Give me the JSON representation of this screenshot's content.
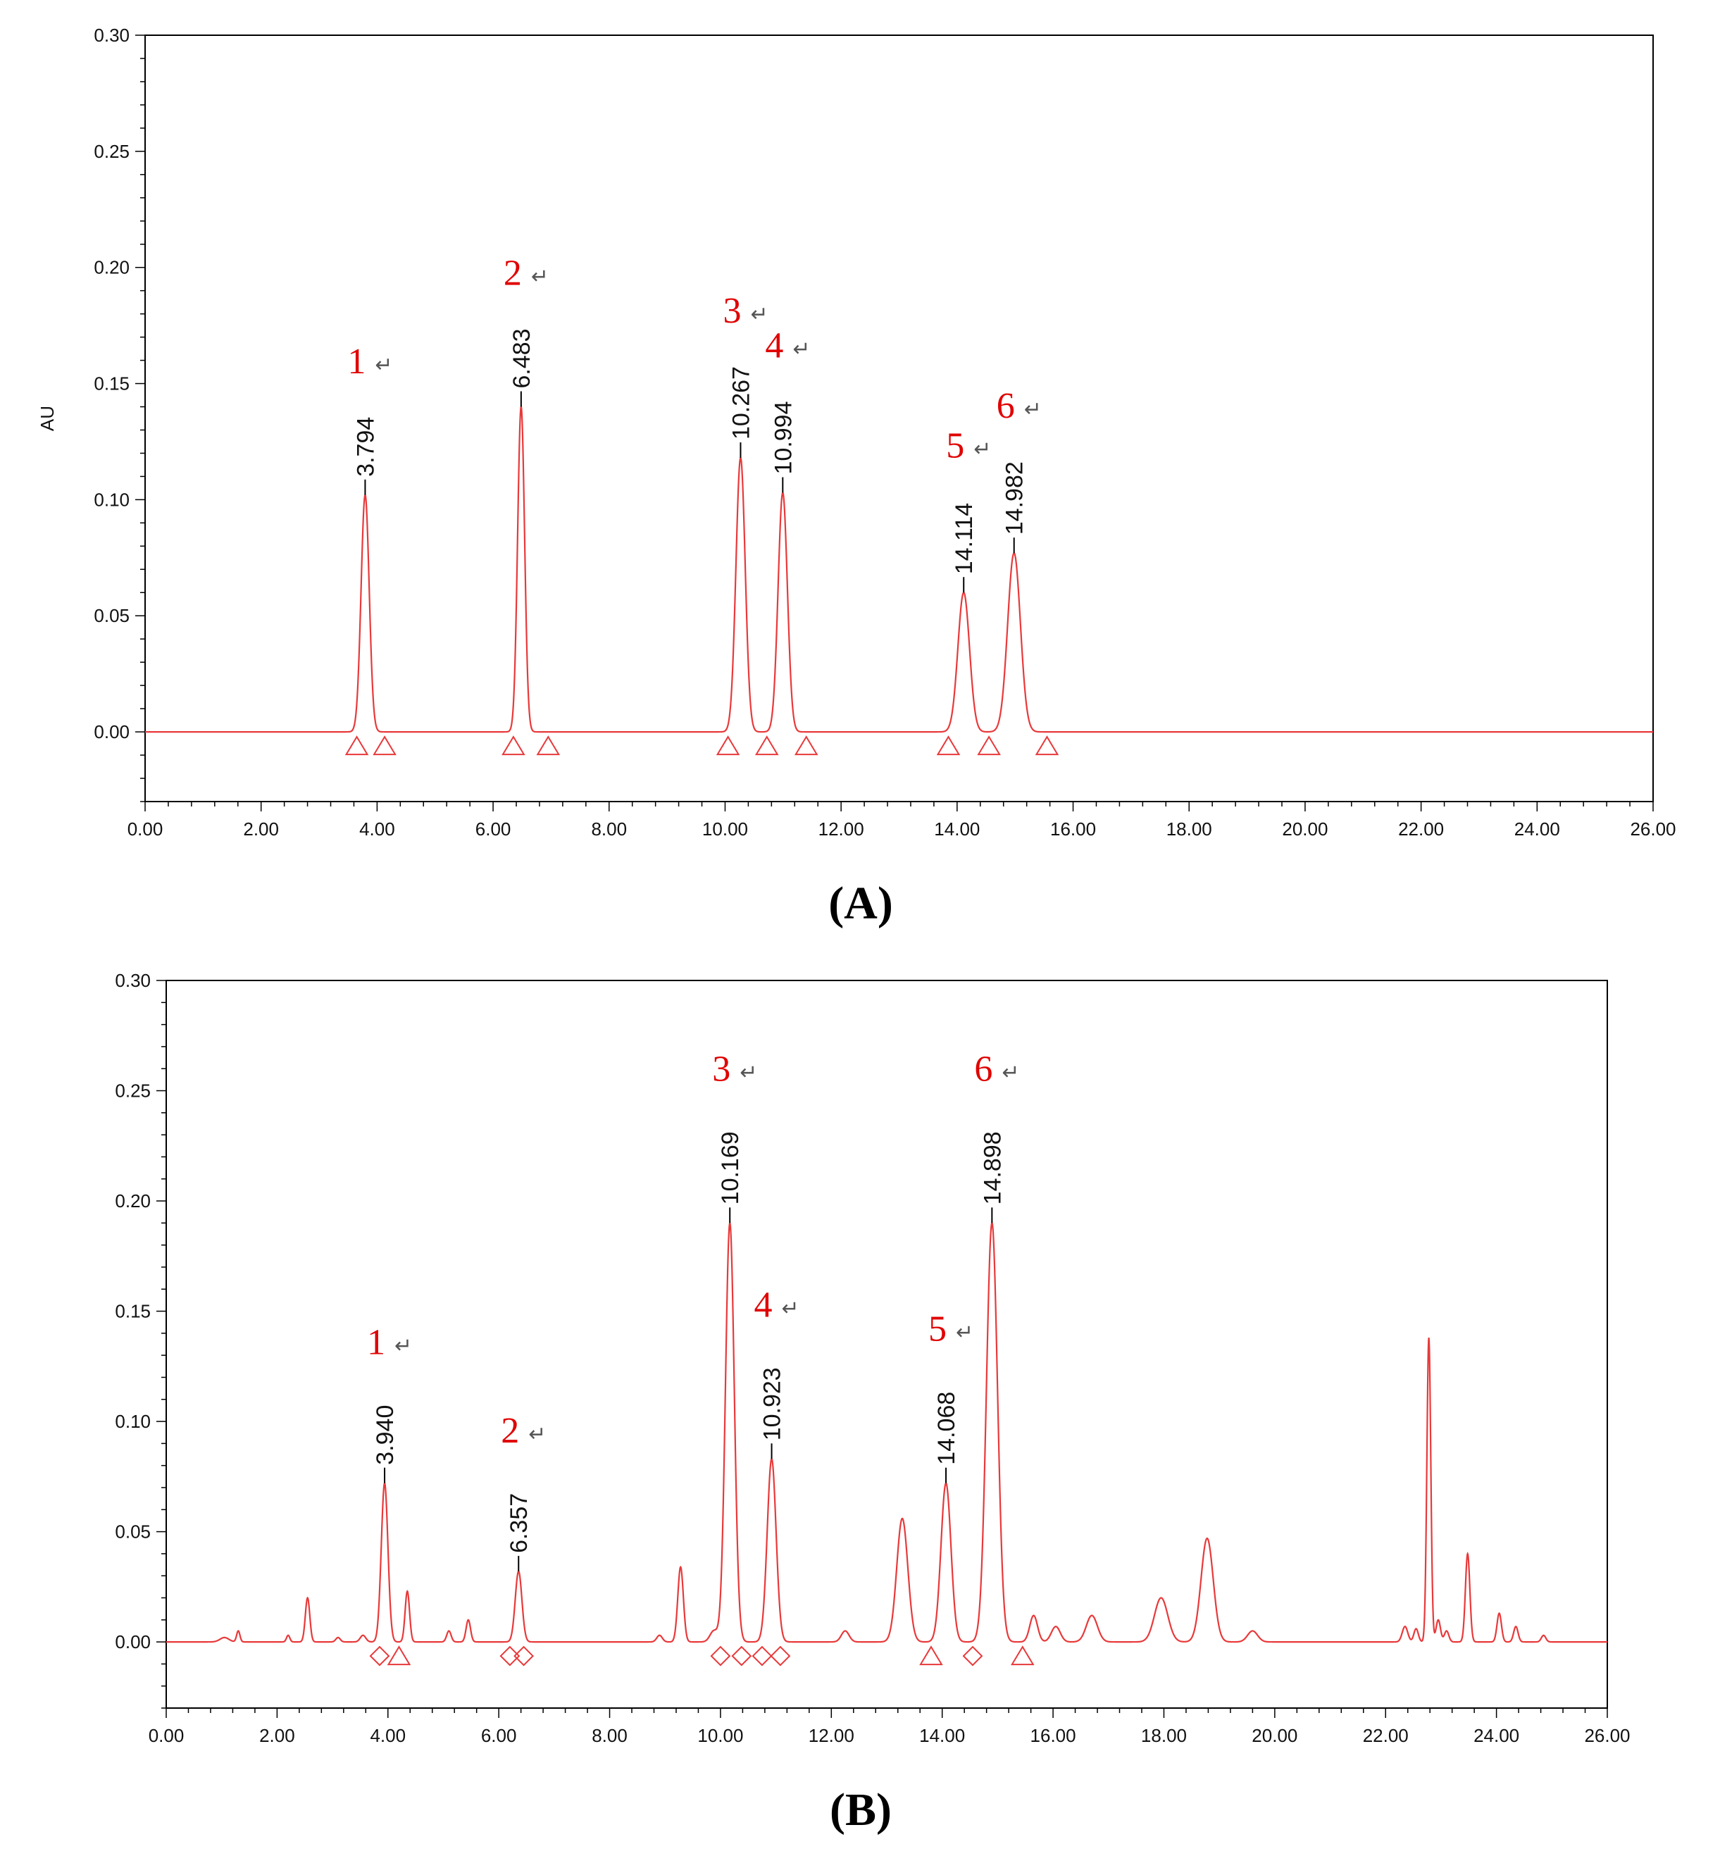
{
  "colors": {
    "trace": "#e8393a",
    "peak_label": "#e00000",
    "axis": "#000000"
  },
  "return_symbol": "↵",
  "chart_data": [
    {
      "type": "line",
      "panel_label": "(A)",
      "ylabel": "AU",
      "xlim": [
        0,
        26
      ],
      "ylim": [
        -0.03,
        0.3
      ],
      "x_ticks": [
        "0.00",
        "2.00",
        "4.00",
        "6.00",
        "8.00",
        "10.00",
        "12.00",
        "14.00",
        "16.00",
        "18.00",
        "20.00",
        "22.00",
        "24.00",
        "26.00"
      ],
      "y_ticks": [
        "0.30",
        "0.25",
        "0.20",
        "0.15",
        "0.10",
        "0.05",
        "0.00"
      ],
      "peaks": [
        {
          "rt": 3.794,
          "height": 0.102,
          "width": 0.07,
          "label": "3.794",
          "number": "1"
        },
        {
          "rt": 6.483,
          "height": 0.14,
          "width": 0.06,
          "label": "6.483",
          "number": "2"
        },
        {
          "rt": 10.267,
          "height": 0.118,
          "width": 0.08,
          "label": "10.267",
          "number": "3"
        },
        {
          "rt": 10.994,
          "height": 0.103,
          "width": 0.08,
          "label": "10.994",
          "number": "4"
        },
        {
          "rt": 14.114,
          "height": 0.06,
          "width": 0.1,
          "label": "14.114",
          "number": "5"
        },
        {
          "rt": 14.982,
          "height": 0.077,
          "width": 0.11,
          "label": "14.982",
          "number": "6"
        }
      ],
      "minor_peaks": [],
      "markers": [
        {
          "x": 3.65,
          "shape": "triangle"
        },
        {
          "x": 4.13,
          "shape": "triangle"
        },
        {
          "x": 6.35,
          "shape": "triangle"
        },
        {
          "x": 6.95,
          "shape": "triangle"
        },
        {
          "x": 10.05,
          "shape": "triangle"
        },
        {
          "x": 10.72,
          "shape": "triangle"
        },
        {
          "x": 11.4,
          "shape": "triangle"
        },
        {
          "x": 13.85,
          "shape": "triangle"
        },
        {
          "x": 14.55,
          "shape": "triangle"
        },
        {
          "x": 15.55,
          "shape": "triangle"
        }
      ]
    },
    {
      "type": "line",
      "panel_label": "(B)",
      "ylabel": "",
      "xlim": [
        0,
        26
      ],
      "ylim": [
        -0.03,
        0.3
      ],
      "x_ticks": [
        "0.00",
        "2.00",
        "4.00",
        "6.00",
        "8.00",
        "10.00",
        "12.00",
        "14.00",
        "16.00",
        "18.00",
        "20.00",
        "22.00",
        "24.00",
        "26.00"
      ],
      "y_ticks": [
        "0.30",
        "0.25",
        "0.20",
        "0.15",
        "0.10",
        "0.05",
        "0.00"
      ],
      "peaks": [
        {
          "rt": 3.94,
          "height": 0.072,
          "width": 0.06,
          "label": "3.940",
          "number": "1"
        },
        {
          "rt": 6.357,
          "height": 0.032,
          "width": 0.06,
          "label": "6.357",
          "number": "2"
        },
        {
          "rt": 10.169,
          "height": 0.19,
          "width": 0.08,
          "label": "10.169",
          "number": "3"
        },
        {
          "rt": 10.923,
          "height": 0.083,
          "width": 0.08,
          "label": "10.923",
          "number": "4"
        },
        {
          "rt": 14.068,
          "height": 0.072,
          "width": 0.09,
          "label": "14.068",
          "number": "5"
        },
        {
          "rt": 14.898,
          "height": 0.19,
          "width": 0.1,
          "label": "14.898",
          "number": "6"
        }
      ],
      "minor_peaks": [
        {
          "rt": 1.05,
          "height": 0.002,
          "width": 0.08
        },
        {
          "rt": 1.3,
          "height": 0.005,
          "width": 0.03
        },
        {
          "rt": 2.2,
          "height": 0.003,
          "width": 0.03
        },
        {
          "rt": 2.55,
          "height": 0.02,
          "width": 0.04
        },
        {
          "rt": 3.1,
          "height": 0.002,
          "width": 0.04
        },
        {
          "rt": 3.55,
          "height": 0.003,
          "width": 0.05
        },
        {
          "rt": 4.35,
          "height": 0.023,
          "width": 0.04
        },
        {
          "rt": 5.1,
          "height": 0.005,
          "width": 0.04
        },
        {
          "rt": 5.45,
          "height": 0.01,
          "width": 0.04
        },
        {
          "rt": 8.9,
          "height": 0.003,
          "width": 0.05
        },
        {
          "rt": 9.28,
          "height": 0.034,
          "width": 0.05
        },
        {
          "rt": 9.88,
          "height": 0.005,
          "width": 0.07
        },
        {
          "rt": 12.25,
          "height": 0.005,
          "width": 0.07
        },
        {
          "rt": 13.28,
          "height": 0.056,
          "width": 0.1
        },
        {
          "rt": 15.65,
          "height": 0.012,
          "width": 0.07
        },
        {
          "rt": 16.05,
          "height": 0.007,
          "width": 0.08
        },
        {
          "rt": 16.7,
          "height": 0.012,
          "width": 0.1
        },
        {
          "rt": 17.95,
          "height": 0.02,
          "width": 0.12
        },
        {
          "rt": 18.78,
          "height": 0.047,
          "width": 0.11
        },
        {
          "rt": 19.6,
          "height": 0.005,
          "width": 0.09
        },
        {
          "rt": 22.35,
          "height": 0.007,
          "width": 0.05
        },
        {
          "rt": 22.55,
          "height": 0.006,
          "width": 0.04
        },
        {
          "rt": 22.78,
          "height": 0.138,
          "width": 0.035
        },
        {
          "rt": 22.95,
          "height": 0.01,
          "width": 0.04
        },
        {
          "rt": 23.1,
          "height": 0.005,
          "width": 0.04
        },
        {
          "rt": 23.48,
          "height": 0.04,
          "width": 0.04
        },
        {
          "rt": 24.05,
          "height": 0.013,
          "width": 0.04
        },
        {
          "rt": 24.35,
          "height": 0.007,
          "width": 0.04
        },
        {
          "rt": 24.85,
          "height": 0.003,
          "width": 0.04
        }
      ],
      "markers": [
        {
          "x": 3.85,
          "shape": "diamond"
        },
        {
          "x": 4.2,
          "shape": "triangle"
        },
        {
          "x": 6.2,
          "shape": "diamond"
        },
        {
          "x": 6.45,
          "shape": "diamond"
        },
        {
          "x": 10.0,
          "shape": "diamond"
        },
        {
          "x": 10.38,
          "shape": "diamond"
        },
        {
          "x": 10.75,
          "shape": "diamond"
        },
        {
          "x": 11.08,
          "shape": "diamond"
        },
        {
          "x": 13.8,
          "shape": "triangle"
        },
        {
          "x": 14.55,
          "shape": "diamond"
        },
        {
          "x": 15.45,
          "shape": "triangle"
        }
      ]
    }
  ]
}
